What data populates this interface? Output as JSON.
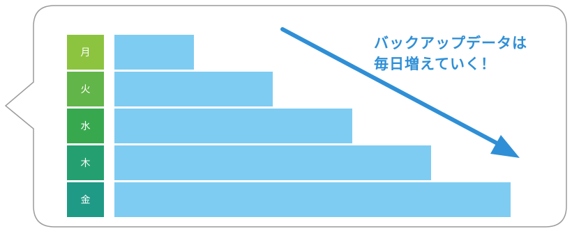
{
  "chart_data": {
    "type": "bar",
    "orientation": "horizontal",
    "categories": [
      "月",
      "火",
      "水",
      "木",
      "金"
    ],
    "values": [
      1,
      2,
      3,
      4,
      5
    ],
    "category_colors": [
      "#8cc43f",
      "#62b548",
      "#38a84f",
      "#24a070",
      "#1f9a86"
    ],
    "bar_color": "#7fccf2"
  },
  "callout": {
    "line1": "バックアップデータは",
    "line2": "毎日増えていく！",
    "color": "#2f8fd6"
  },
  "arrow_color": "#2f8fd6",
  "bubble_border_color": "#9a9a9a"
}
